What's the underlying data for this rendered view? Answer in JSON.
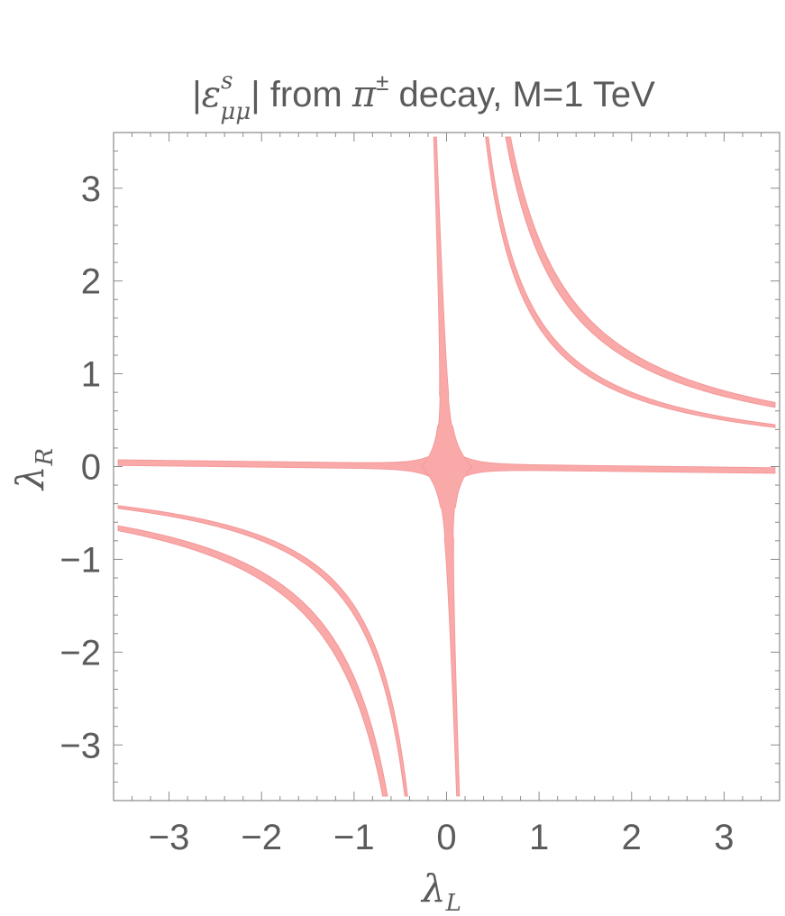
{
  "chart_data": {
    "type": "contour-region",
    "title_parts": {
      "prefix": "|",
      "epsilon": "ε",
      "superscript": "s",
      "subscript": "μμ",
      "middle": "| from ",
      "pi": "π",
      "pi_superscript": "±",
      "suffix": " decay, M=1 TeV"
    },
    "xlabel": {
      "symbol": "λ",
      "subscript": "L"
    },
    "ylabel": {
      "symbol": "λ",
      "subscript": "R"
    },
    "xlim": [
      -3.6,
      3.6
    ],
    "ylim": [
      -3.6,
      3.6
    ],
    "x_ticks": [
      -3,
      -2,
      -1,
      0,
      1,
      2,
      3
    ],
    "y_ticks": [
      -3,
      -2,
      -1,
      0,
      1,
      2,
      3
    ],
    "x_tick_labels": [
      "−3",
      "−2",
      "−1",
      "0",
      "1",
      "2",
      "3"
    ],
    "y_tick_labels": [
      "−3",
      "−2",
      "−1",
      "0",
      "1",
      "2",
      "3"
    ],
    "minor_ticks_per_major": 4,
    "fill_color": "#FAA9A9",
    "edge_color": "#F49A9A",
    "regions": {
      "outer_hyperbola_band": {
        "product_min": 2.27,
        "product_max": 2.45
      },
      "inner_hyperbola_band": {
        "product_min": 1.5,
        "product_max": 1.6
      },
      "central_cross": {
        "vertical_spike_x_at_top": -0.12,
        "vertical_spike_x_at_bottom": 0.12,
        "horizontal_band_half_width": 0.03,
        "center_blob_radius": 0.22
      }
    }
  }
}
